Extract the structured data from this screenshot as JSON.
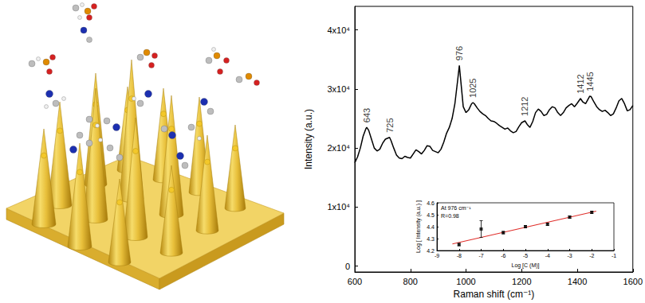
{
  "chart_data": [
    {
      "type": "line",
      "xlabel": "Raman shift (cm⁻¹)",
      "ylabel": "Intensity (a.u.)",
      "x": [
        600,
        610,
        620,
        630,
        640,
        643,
        650,
        660,
        670,
        680,
        690,
        700,
        710,
        720,
        725,
        730,
        740,
        750,
        760,
        770,
        780,
        790,
        800,
        810,
        820,
        830,
        840,
        850,
        860,
        870,
        880,
        890,
        900,
        910,
        920,
        930,
        940,
        950,
        960,
        970,
        976,
        980,
        990,
        1000,
        1010,
        1020,
        1025,
        1030,
        1040,
        1050,
        1060,
        1070,
        1080,
        1090,
        1100,
        1110,
        1120,
        1130,
        1140,
        1150,
        1160,
        1170,
        1180,
        1190,
        1200,
        1212,
        1220,
        1230,
        1240,
        1250,
        1260,
        1270,
        1280,
        1290,
        1300,
        1310,
        1320,
        1330,
        1340,
        1350,
        1360,
        1370,
        1380,
        1390,
        1400,
        1412,
        1420,
        1430,
        1445,
        1450,
        1460,
        1470,
        1480,
        1490,
        1500,
        1510,
        1520,
        1530,
        1540,
        1550,
        1560,
        1570,
        1580,
        1590,
        1600
      ],
      "values": [
        17500,
        18500,
        20000,
        22000,
        23300,
        23500,
        23000,
        21500,
        20000,
        19500,
        19800,
        20800,
        21500,
        21700,
        21800,
        21300,
        20000,
        18800,
        18300,
        18200,
        18600,
        18400,
        18300,
        19000,
        19700,
        19400,
        19000,
        19600,
        20400,
        20300,
        19600,
        19400,
        19200,
        19800,
        21000,
        22500,
        23500,
        25000,
        27500,
        31500,
        34000,
        32000,
        27000,
        26000,
        26500,
        27500,
        27700,
        27500,
        26800,
        26200,
        25800,
        25500,
        25000,
        24600,
        24500,
        24200,
        23800,
        23500,
        23200,
        23400,
        22900,
        22600,
        22800,
        23600,
        24300,
        24600,
        24000,
        23500,
        24500,
        26000,
        26600,
        26200,
        25500,
        25700,
        26500,
        27000,
        26800,
        26000,
        25500,
        26000,
        26800,
        27200,
        27500,
        27000,
        27600,
        28400,
        27800,
        27500,
        28800,
        28700,
        27800,
        27000,
        26500,
        26200,
        26400,
        26000,
        25500,
        25800,
        26800,
        28000,
        28400,
        27500,
        26300,
        26500,
        27200
      ],
      "color": "#000000",
      "annotations": [
        {
          "text": "643",
          "x": 643
        },
        {
          "text": "725",
          "x": 725
        },
        {
          "text": "976",
          "x": 976
        },
        {
          "text": "1025",
          "x": 1025
        },
        {
          "text": "1212",
          "x": 1212
        },
        {
          "text": "1412",
          "x": 1412
        },
        {
          "text": "1445",
          "x": 1445
        }
      ],
      "xlim": [
        600,
        1600
      ],
      "xticks": [
        600,
        800,
        1000,
        1200,
        1400,
        1600
      ],
      "ylim": [
        -1000,
        44000
      ],
      "yticks": [
        0,
        {
          "value": 10000,
          "label": "1x10⁴"
        },
        {
          "value": 20000,
          "label": "2x10⁴"
        },
        {
          "value": 30000,
          "label": "3x10⁴"
        },
        {
          "value": 40000,
          "label": "4x10⁴"
        }
      ],
      "grid": false
    },
    {
      "type": "scatter",
      "xlabel": "Log [C (M)]",
      "ylabel": "Log [ Intensity (a.u.) ]",
      "annotations": [
        "At 976 cm⁻¹",
        "R=0.98"
      ],
      "x": [
        -8,
        -7,
        -6,
        -5,
        -4,
        -3,
        -2
      ],
      "values": [
        4.25,
        4.38,
        4.35,
        4.4,
        4.42,
        4.48,
        4.52
      ],
      "errors": [
        0.01,
        0.07,
        0.01,
        0.01,
        0.01,
        0.01,
        0.01
      ],
      "fit": {
        "x": [
          -8.3,
          -1.8
        ],
        "values": [
          4.255,
          4.53
        ],
        "color": "#e0302c"
      },
      "marker": "square",
      "color": "#000000",
      "xlim": [
        -9,
        -1
      ],
      "xticks": [
        -9,
        -8,
        -7,
        -6,
        -5,
        -4,
        -3,
        -2,
        -1
      ],
      "ylim": [
        4.2,
        4.6
      ],
      "yticks": [
        4.2,
        4.3,
        4.4,
        4.5,
        4.6
      ],
      "grid": false
    }
  ]
}
